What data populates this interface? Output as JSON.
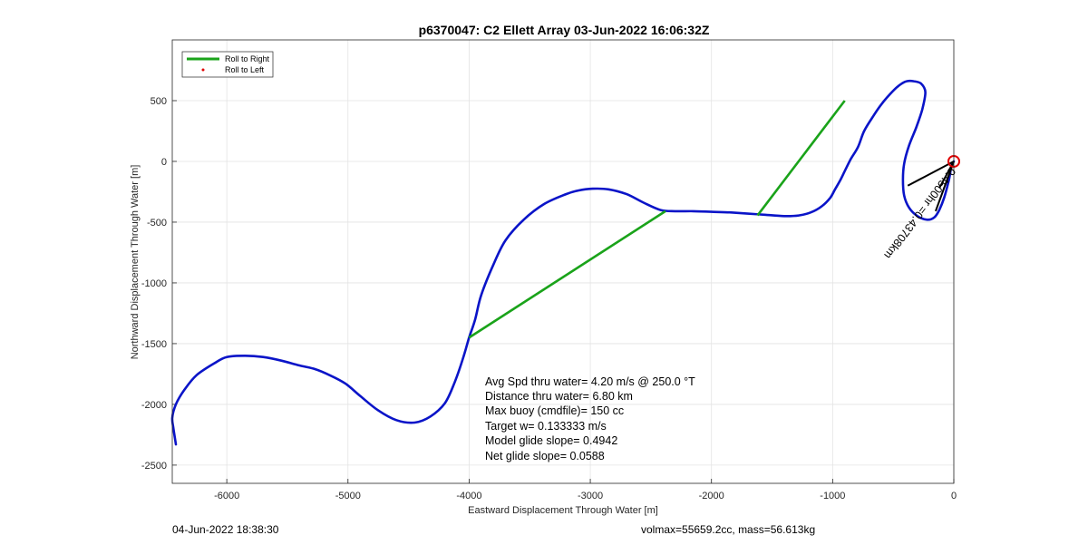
{
  "chart_data": {
    "type": "line",
    "title": "p6370047: C2 Ellett Array 03-Jun-2022 16:06:32Z",
    "xlabel": "Eastward Displacement Through Water [m]",
    "ylabel": "Northward Displacement Through Water [m]",
    "xlim": [
      -6450,
      0
    ],
    "ylim": [
      -2650,
      1000
    ],
    "xticks": [
      -6000,
      -5000,
      -4000,
      -3000,
      -2000,
      -1000,
      0
    ],
    "yticks": [
      -2500,
      -2000,
      -1500,
      -1000,
      -500,
      0,
      500
    ],
    "grid": true,
    "legend_position": "top-left",
    "legend": [
      {
        "label": "Roll to Right",
        "color": "#1aa31a",
        "style": "line"
      },
      {
        "label": "Roll to Left",
        "color": "#e00000",
        "style": "dot"
      }
    ],
    "series": [
      {
        "color": "#0a14c8",
        "x": [
          0,
          -20,
          -40,
          -80,
          -120,
          -160,
          -220,
          -300,
          -370,
          -410,
          -420,
          -410,
          -370,
          -310,
          -260,
          -235,
          -270,
          -330,
          -390,
          -430,
          -470,
          -520,
          -590,
          -660,
          -740,
          -790,
          -850,
          -900,
          -940,
          -980,
          -1020,
          -1090,
          -1180,
          -1280,
          -1400,
          -1550,
          -1700,
          -1850,
          -2000,
          -2150,
          -2300,
          -2420,
          -2560,
          -2700,
          -2850,
          -2980,
          -3100,
          -3200,
          -3380,
          -3550,
          -3700,
          -3800,
          -3900,
          -3950,
          -4000,
          -4050,
          -4120,
          -4200,
          -4320,
          -4450,
          -4600,
          -4750,
          -4900,
          -5020,
          -5150,
          -5270,
          -5400,
          -5550,
          -5700,
          -5850,
          -6000,
          -6100,
          -6250,
          -6350,
          -6420,
          -6450,
          -6440,
          -6420
        ],
        "y": [
          0,
          -40,
          -150,
          -300,
          -400,
          -460,
          -480,
          -450,
          -380,
          -280,
          -150,
          -20,
          130,
          280,
          430,
          570,
          640,
          660,
          660,
          640,
          610,
          560,
          480,
          380,
          250,
          120,
          20,
          -80,
          -160,
          -230,
          -300,
          -370,
          -420,
          -445,
          -450,
          -440,
          -430,
          -420,
          -415,
          -410,
          -410,
          -400,
          -340,
          -270,
          -230,
          -225,
          -240,
          -270,
          -350,
          -480,
          -650,
          -850,
          -1100,
          -1300,
          -1450,
          -1620,
          -1820,
          -1990,
          -2100,
          -2150,
          -2130,
          -2050,
          -1930,
          -1830,
          -1760,
          -1710,
          -1680,
          -1640,
          -1610,
          -1600,
          -1610,
          -1660,
          -1760,
          -1880,
          -2000,
          -2110,
          -2200,
          -2330
        ]
      }
    ],
    "roll_to_right_segments": [
      {
        "x": [
          -4000,
          -2380
        ],
        "y": [
          -1450,
          -410
        ]
      },
      {
        "x": [
          -1620,
          -900
        ],
        "y": [
          -445,
          500
        ]
      }
    ],
    "surface_marker": {
      "x": 0,
      "y": 0,
      "color": "#e00000"
    },
    "current_vectors": [
      {
        "x": [
          0,
          -380
        ],
        "y": [
          0,
          -200
        ]
      },
      {
        "x": [
          0,
          -150
        ],
        "y": [
          0,
          -410
        ]
      },
      {
        "x": [
          0,
          -120
        ],
        "y": [
          0,
          -220
        ]
      }
    ],
    "vector_label": "0.4500hr =0.43708km",
    "annotations": [
      "Avg Spd thru water=  4.20 m/s @ 250.0 °T",
      "Distance thru water=  6.80 km",
      "Max buoy (cmdfile)= 150 cc",
      "Target w= 0.133333 m/s",
      "Model glide slope= 0.4942",
      "Net glide slope= 0.0588"
    ]
  },
  "footer": {
    "left": "04-Jun-2022 18:38:30",
    "right": "volmax=55659.2cc, mass=56.613kg"
  }
}
